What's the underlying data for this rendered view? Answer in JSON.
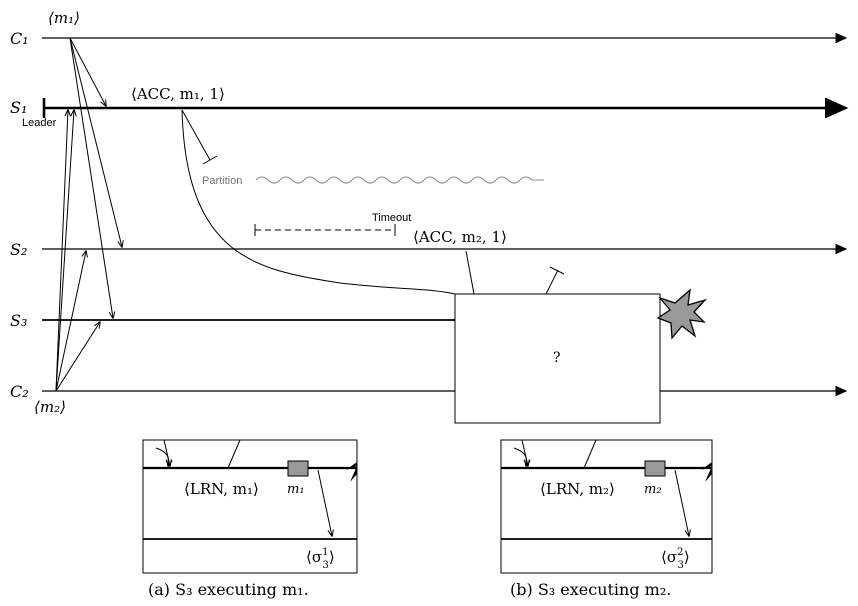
{
  "lines": {
    "c1": "C₁",
    "s1": "S₁",
    "s2": "S₂",
    "s3": "S₃",
    "c2": "C₂"
  },
  "labels": {
    "m1_msg": "⟨m₁⟩",
    "m2_msg": "⟨m₂⟩",
    "leader": "Leader",
    "acc_m1": "⟨ACC, m₁, 1⟩",
    "acc_m2": "⟨ACC, m₂, 1⟩",
    "partition": "Partition",
    "timeout": "Timeout",
    "unknown": "?"
  },
  "insets": [
    {
      "lrn": "⟨LRN, m₁⟩",
      "msg": "m₁",
      "sigma_base": "⟨σ",
      "sigma_sup": "1",
      "sigma_sub": "3",
      "sigma_close": "⟩",
      "caption": "(a)  S₃ executing m₁."
    },
    {
      "lrn": "⟨LRN, m₂⟩",
      "msg": "m₂",
      "sigma_base": "⟨σ",
      "sigma_sup": "2",
      "sigma_sub": "3",
      "sigma_close": "⟩",
      "caption": "(b)  S₃ executing m₂."
    }
  ],
  "colors": {
    "line": "#000000",
    "box_fill": "#999999",
    "partition": "#888888",
    "crash_fill": "#999999"
  }
}
